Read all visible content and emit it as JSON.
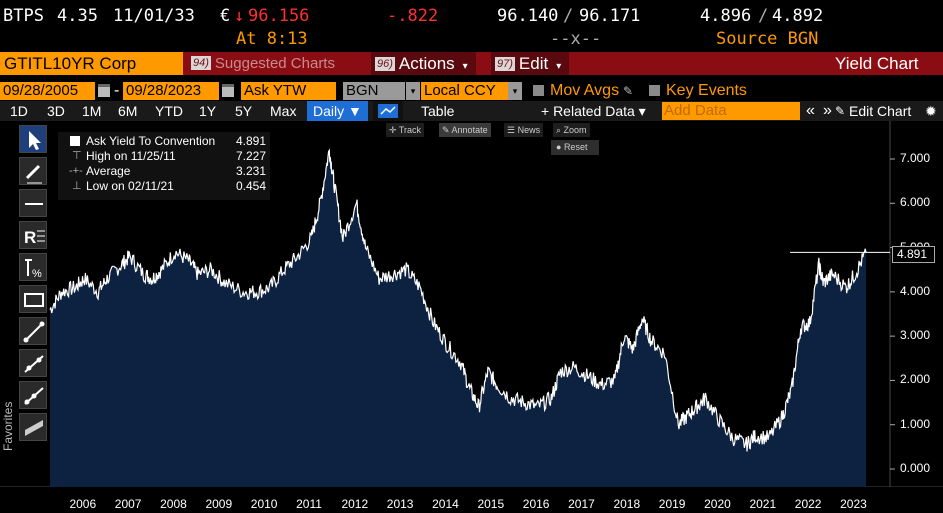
{
  "quote": {
    "ticker": "BTPS",
    "coupon": "4.35",
    "maturity": "11/01/33",
    "currency": "€",
    "last_arrow": "↓",
    "last_price": "96.156",
    "change": "-.822",
    "time": "At 8:13",
    "bid_price": "96.140",
    "ask_price": "96.171",
    "price_sep": "/",
    "size": "--x--",
    "bid_yield": "4.896",
    "ask_yield": "4.892",
    "yield_sep": "/",
    "source": "Source BGN"
  },
  "titlebar": {
    "security": "GTITL10YR Corp",
    "suggested_num": "94)",
    "suggested": "Suggested Charts",
    "actions_num": "96)",
    "actions": "Actions",
    "edit_num": "97)",
    "edit": "Edit",
    "caret": "▾",
    "title": "Yield Chart"
  },
  "controls": {
    "start_date": "09/28/2005",
    "dash": "-",
    "end_date": "09/28/2023",
    "field": "Ask YTW",
    "source": "BGN",
    "currency": "Local CCY",
    "mov_avgs": "Mov Avgs",
    "key_events": "Key Events"
  },
  "periods": {
    "items": [
      "1D",
      "3D",
      "1M",
      "6M",
      "YTD",
      "1Y",
      "5Y",
      "Max"
    ],
    "frequency": "Daily ▼",
    "table": "Table",
    "related": "+ Related Data ▾",
    "add_data_placeholder": "Add Data",
    "nav_prev": "«",
    "nav_next": "»",
    "edit_chart": "Edit Chart",
    "gear": "✹"
  },
  "chart_toolbar": {
    "track": "Track",
    "annotate": "Annotate",
    "news": "News",
    "zoom": "Zoom",
    "reset": "Reset"
  },
  "favorites_label": "Favorites",
  "legend": {
    "rows": [
      {
        "name": "Ask Yield To Convention",
        "value": "4.891"
      },
      {
        "name": "High on 11/25/11",
        "value": "7.227"
      },
      {
        "name": "Average",
        "value": "3.231"
      },
      {
        "name": "Low on 02/11/21",
        "value": "0.454"
      }
    ]
  },
  "colors": {
    "orange": "#ff9900",
    "title_red": "#8b0d14",
    "down_red": "#ff3030",
    "fill": "#0c2240",
    "line": "#ffffff",
    "active_blue": "#1f6ed6"
  },
  "chart_data": {
    "type": "area",
    "x_range": [
      "2005-09-28",
      "2023-09-28"
    ],
    "ylim": [
      0,
      7.5
    ],
    "y_ticks": [
      "7.000",
      "6.000",
      "5.000",
      "4.000",
      "3.000",
      "2.000",
      "1.000",
      "0.000"
    ],
    "x_tick_labels": [
      "2006",
      "2007",
      "2008",
      "2009",
      "2010",
      "2011",
      "2012",
      "2013",
      "2014",
      "2015",
      "2016",
      "2017",
      "2018",
      "2019",
      "2020",
      "2021",
      "2022",
      "2023"
    ],
    "last_value": "4.891",
    "series": [
      {
        "name": "Ask Yield To Convention",
        "x": [
          2005.74,
          2006.0,
          2006.3,
          2006.5,
          2006.8,
          2007.0,
          2007.3,
          2007.5,
          2007.8,
          2008.0,
          2008.2,
          2008.5,
          2008.8,
          2009.0,
          2009.3,
          2009.6,
          2010.0,
          2010.3,
          2010.6,
          2010.9,
          2011.2,
          2011.5,
          2011.7,
          2011.9,
          2012.0,
          2012.2,
          2012.5,
          2012.7,
          2013.0,
          2013.3,
          2013.6,
          2013.9,
          2014.2,
          2014.5,
          2014.8,
          2015.0,
          2015.2,
          2015.4,
          2015.6,
          2015.9,
          2016.2,
          2016.5,
          2016.8,
          2017.0,
          2017.3,
          2017.6,
          2017.9,
          2018.2,
          2018.4,
          2018.6,
          2018.8,
          2019.0,
          2019.3,
          2019.6,
          2019.8,
          2020.0,
          2020.2,
          2020.5,
          2020.8,
          2021.1,
          2021.3,
          2021.6,
          2021.9,
          2022.1,
          2022.3,
          2022.5,
          2022.7,
          2022.8,
          2023.0,
          2023.3,
          2023.5,
          2023.74
        ],
        "y": [
          3.6,
          4.0,
          4.1,
          4.3,
          4.0,
          4.3,
          4.6,
          4.8,
          4.4,
          4.3,
          4.5,
          4.9,
          4.7,
          4.4,
          4.5,
          4.2,
          4.0,
          4.0,
          4.1,
          4.5,
          4.8,
          5.2,
          6.0,
          7.2,
          6.5,
          5.2,
          6.0,
          5.0,
          4.3,
          4.4,
          4.5,
          4.1,
          3.3,
          2.8,
          2.4,
          1.8,
          1.4,
          2.2,
          1.9,
          1.6,
          1.5,
          1.4,
          1.6,
          2.2,
          2.3,
          2.1,
          1.9,
          2.0,
          3.0,
          2.7,
          3.4,
          2.9,
          2.6,
          1.0,
          1.2,
          1.4,
          1.6,
          1.1,
          0.7,
          0.55,
          0.75,
          0.7,
          1.2,
          1.8,
          3.2,
          3.3,
          4.6,
          4.2,
          4.4,
          4.1,
          4.4,
          4.891
        ]
      }
    ]
  }
}
